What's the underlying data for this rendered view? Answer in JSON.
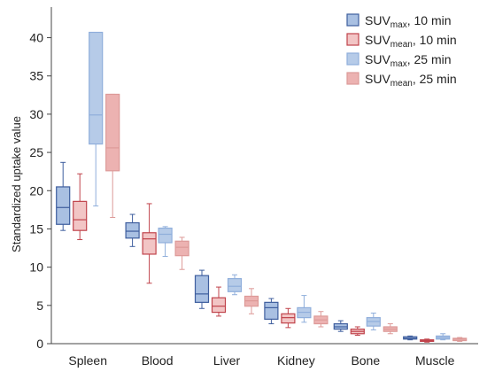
{
  "chart_data": {
    "type": "box",
    "title": "",
    "xlabel": "",
    "ylabel": "Standardized uptake value",
    "ylim": [
      0,
      44
    ],
    "yticks": [
      "0",
      "5",
      "10",
      "15",
      "20",
      "25",
      "30",
      "35",
      "40"
    ],
    "grid": false,
    "legend_position": "top-right",
    "categories": [
      "Spleen",
      "Blood",
      "Liver",
      "Kidney",
      "Bone",
      "Muscle"
    ],
    "series": [
      {
        "name": "SUVmax, 10 min",
        "legend": {
          "base": "SUV",
          "sub": "max",
          "suffix": ", 10 min"
        },
        "fill": "#a9c0e2",
        "stroke": "#3e5e9e",
        "boxes": [
          {
            "min": 14.8,
            "q1": 15.6,
            "median": 17.8,
            "q3": 20.5,
            "max": 23.7
          },
          {
            "min": 12.7,
            "q1": 13.8,
            "median": 14.7,
            "q3": 15.8,
            "max": 16.9
          },
          {
            "min": 4.6,
            "q1": 5.4,
            "median": 6.5,
            "q3": 8.9,
            "max": 9.6
          },
          {
            "min": 2.6,
            "q1": 3.2,
            "median": 4.7,
            "q3": 5.4,
            "max": 5.9
          },
          {
            "min": 1.6,
            "q1": 1.9,
            "median": 2.2,
            "q3": 2.6,
            "max": 3.0
          },
          {
            "min": 0.5,
            "q1": 0.6,
            "median": 0.7,
            "q3": 0.9,
            "max": 1.0
          }
        ]
      },
      {
        "name": "SUVmean, 10 min",
        "legend": {
          "base": "SUV",
          "sub": "mean",
          "suffix": ", 10 min"
        },
        "fill": "#f2c5c5",
        "stroke": "#c0434b",
        "boxes": [
          {
            "min": 13.6,
            "q1": 14.8,
            "median": 16.2,
            "q3": 18.6,
            "max": 22.2
          },
          {
            "min": 7.9,
            "q1": 11.7,
            "median": 13.7,
            "q3": 14.5,
            "max": 18.3
          },
          {
            "min": 3.6,
            "q1": 4.1,
            "median": 4.9,
            "q3": 6.0,
            "max": 7.4
          },
          {
            "min": 2.1,
            "q1": 2.7,
            "median": 3.4,
            "q3": 3.9,
            "max": 4.6
          },
          {
            "min": 1.1,
            "q1": 1.3,
            "median": 1.6,
            "q3": 1.9,
            "max": 2.2
          },
          {
            "min": 0.2,
            "q1": 0.3,
            "median": 0.4,
            "q3": 0.5,
            "max": 0.6
          }
        ]
      },
      {
        "name": "SUVmax, 25 min",
        "legend": {
          "base": "SUV",
          "sub": "max",
          "suffix": ", 25 min"
        },
        "fill": "#b6cbe8",
        "stroke": "#8faedb",
        "boxes": [
          {
            "min": 18.0,
            "q1": 26.1,
            "median": 29.9,
            "q3": 40.7,
            "max": 40.7
          },
          {
            "min": 11.4,
            "q1": 13.2,
            "median": 14.3,
            "q3": 15.1,
            "max": 15.3
          },
          {
            "min": 6.4,
            "q1": 6.8,
            "median": 7.5,
            "q3": 8.5,
            "max": 9.0
          },
          {
            "min": 2.8,
            "q1": 3.4,
            "median": 4.1,
            "q3": 4.7,
            "max": 6.3
          },
          {
            "min": 1.8,
            "q1": 2.3,
            "median": 2.9,
            "q3": 3.4,
            "max": 4.0
          },
          {
            "min": 0.5,
            "q1": 0.6,
            "median": 0.8,
            "q3": 1.0,
            "max": 1.3
          }
        ]
      },
      {
        "name": "SUVmean, 25 min",
        "legend": {
          "base": "SUV",
          "sub": "mean",
          "suffix": ", 25 min"
        },
        "fill": "#ecb2b1",
        "stroke": "#dd9a98",
        "boxes": [
          {
            "min": 16.5,
            "q1": 22.6,
            "median": 25.6,
            "q3": 32.6,
            "max": 32.6
          },
          {
            "min": 9.7,
            "q1": 11.5,
            "median": 12.6,
            "q3": 13.4,
            "max": 13.9
          },
          {
            "min": 3.9,
            "q1": 4.9,
            "median": 5.6,
            "q3": 6.2,
            "max": 7.2
          },
          {
            "min": 2.2,
            "q1": 2.6,
            "median": 3.1,
            "q3": 3.6,
            "max": 4.2
          },
          {
            "min": 1.3,
            "q1": 1.6,
            "median": 1.9,
            "q3": 2.2,
            "max": 2.6
          },
          {
            "min": 0.3,
            "q1": 0.4,
            "median": 0.6,
            "q3": 0.7,
            "max": 0.8
          }
        ]
      }
    ]
  }
}
